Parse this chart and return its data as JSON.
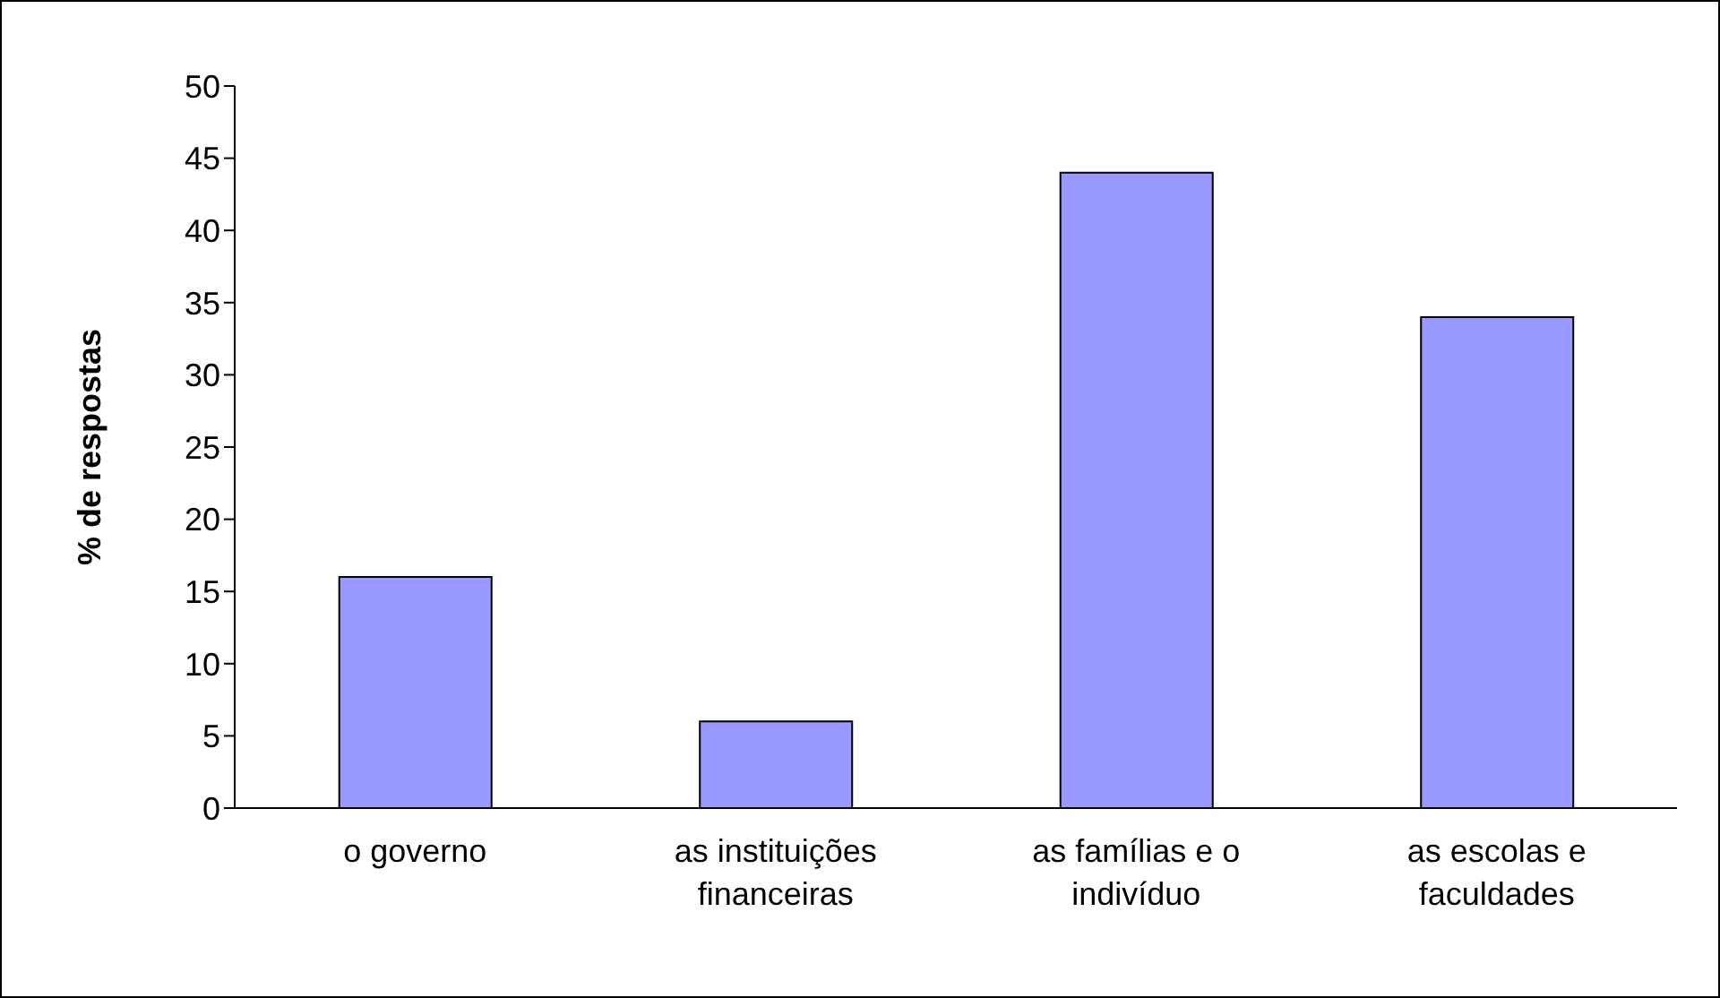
{
  "chart_data": {
    "type": "bar",
    "ylabel": "% de respostas",
    "categories": [
      "o governo",
      "as instituições financeiras",
      "as famílias e o indivíduo",
      "as escolas e faculdades"
    ],
    "values": [
      16,
      6,
      44,
      34
    ],
    "color": "#9999ff",
    "ylim": [
      0,
      50
    ],
    "yticks": [
      0,
      5,
      10,
      15,
      20,
      25,
      30,
      35,
      40,
      45,
      50
    ]
  }
}
